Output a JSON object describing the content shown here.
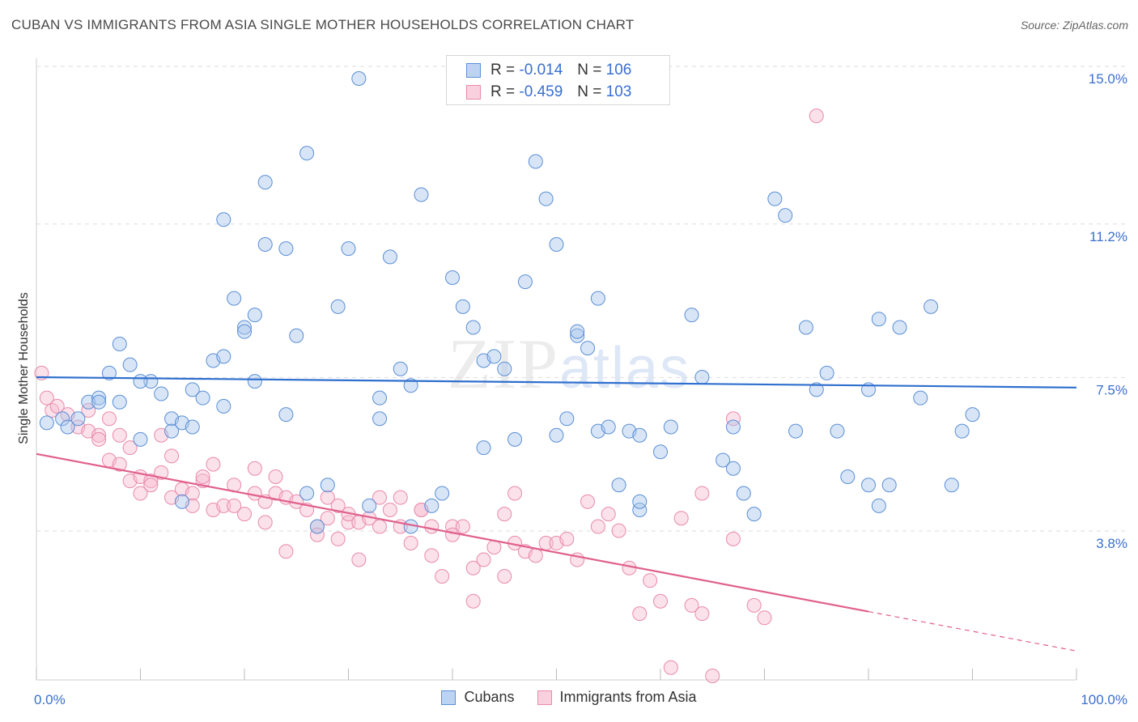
{
  "title": "CUBAN VS IMMIGRANTS FROM ASIA SINGLE MOTHER HOUSEHOLDS CORRELATION CHART",
  "source": "Source: ZipAtlas.com",
  "watermark": {
    "zip": "ZIP",
    "atlas": "atlas"
  },
  "legend": {
    "cubans": {
      "r_label": "R =",
      "r_value": "-0.014",
      "n_label": "N =",
      "n_value": "106"
    },
    "asia": {
      "r_label": "R =",
      "r_value": "-0.459",
      "n_label": "N =",
      "n_value": "103"
    }
  },
  "bottom_legend": {
    "cubans": "Cubans",
    "asia": "Immigrants from Asia"
  },
  "colors": {
    "cubans_fill": "#a9c6ec",
    "cubans_stroke": "#5b8fd6",
    "cubans_line": "#2f6fce",
    "asia_fill": "#f6bdd0",
    "asia_stroke": "#e98aab",
    "asia_line": "#e0608d",
    "tick_label": "#3a6fcf",
    "grid": "#dddddd"
  },
  "chart_data": {
    "type": "scatter",
    "title": "CUBAN VS IMMIGRANTS FROM ASIA SINGLE MOTHER HOUSEHOLDS CORRELATION CHART",
    "xlabel": "",
    "ylabel": "Single Mother Households",
    "xlim": [
      0,
      100
    ],
    "ylim": [
      0,
      15.6
    ],
    "x_tick_labels": [
      "0.0%",
      "100.0%"
    ],
    "y_ticks": [
      3.8,
      7.5,
      11.2,
      15.0
    ],
    "y_tick_labels": [
      "3.8%",
      "7.5%",
      "11.2%",
      "15.0%"
    ],
    "grid": true,
    "legend_position": "top-center",
    "series": [
      {
        "name": "Cubans",
        "trend": {
          "x": [
            0,
            100
          ],
          "y": [
            7.8,
            7.55
          ]
        },
        "points": [
          [
            1,
            6.7
          ],
          [
            2.5,
            6.8
          ],
          [
            3,
            6.6
          ],
          [
            4,
            6.8
          ],
          [
            5,
            7.2
          ],
          [
            6,
            7.3
          ],
          [
            6,
            7.2
          ],
          [
            7,
            7.9
          ],
          [
            8,
            8.6
          ],
          [
            8,
            7.2
          ],
          [
            9,
            8.1
          ],
          [
            10,
            6.3
          ],
          [
            11,
            7.7
          ],
          [
            12,
            7.4
          ],
          [
            13,
            6.8
          ],
          [
            10,
            7.7
          ],
          [
            13,
            6.5
          ],
          [
            14,
            4.8
          ],
          [
            14,
            6.7
          ],
          [
            15,
            6.6
          ],
          [
            15,
            7.5
          ],
          [
            16,
            7.3
          ],
          [
            17,
            8.2
          ],
          [
            18,
            8.3
          ],
          [
            18,
            11.6
          ],
          [
            18,
            7.1
          ],
          [
            19,
            9.7
          ],
          [
            20,
            9.0
          ],
          [
            20,
            8.9
          ],
          [
            21,
            9.3
          ],
          [
            21,
            7.7
          ],
          [
            22,
            12.5
          ],
          [
            22,
            11.0
          ],
          [
            24,
            10.9
          ],
          [
            24,
            6.9
          ],
          [
            25,
            8.8
          ],
          [
            26,
            13.2
          ],
          [
            26,
            5.0
          ],
          [
            27,
            4.2
          ],
          [
            28,
            5.2
          ],
          [
            29,
            9.5
          ],
          [
            30,
            10.9
          ],
          [
            31,
            15.0
          ],
          [
            32,
            4.7
          ],
          [
            33,
            7.3
          ],
          [
            33,
            6.8
          ],
          [
            34,
            10.7
          ],
          [
            35,
            8.0
          ],
          [
            36,
            7.6
          ],
          [
            36,
            4.2
          ],
          [
            37,
            12.2
          ],
          [
            38,
            4.7
          ],
          [
            39,
            5.0
          ],
          [
            40,
            10.2
          ],
          [
            41,
            9.5
          ],
          [
            42,
            9.0
          ],
          [
            43,
            8.2
          ],
          [
            43,
            6.1
          ],
          [
            44,
            8.3
          ],
          [
            45,
            8.0
          ],
          [
            46,
            6.3
          ],
          [
            47,
            10.1
          ],
          [
            48,
            13.0
          ],
          [
            49,
            12.1
          ],
          [
            50,
            11.0
          ],
          [
            50,
            6.4
          ],
          [
            51,
            6.8
          ],
          [
            52,
            8.8
          ],
          [
            52,
            8.9
          ],
          [
            53,
            8.5
          ],
          [
            54,
            9.7
          ],
          [
            54,
            6.5
          ],
          [
            55,
            6.6
          ],
          [
            56,
            5.2
          ],
          [
            57,
            6.5
          ],
          [
            58,
            4.6
          ],
          [
            58,
            4.8
          ],
          [
            58,
            6.4
          ],
          [
            60,
            6.0
          ],
          [
            61,
            6.6
          ],
          [
            63,
            9.3
          ],
          [
            64,
            7.8
          ],
          [
            66,
            5.8
          ],
          [
            67,
            6.6
          ],
          [
            67,
            5.6
          ],
          [
            68,
            5.0
          ],
          [
            69,
            4.5
          ],
          [
            71,
            12.1
          ],
          [
            72,
            11.7
          ],
          [
            73,
            6.5
          ],
          [
            74,
            9.0
          ],
          [
            75,
            7.5
          ],
          [
            76,
            7.9
          ],
          [
            77,
            6.5
          ],
          [
            78,
            5.4
          ],
          [
            80,
            7.5
          ],
          [
            80,
            5.2
          ],
          [
            81,
            9.2
          ],
          [
            81,
            4.7
          ],
          [
            82,
            5.2
          ],
          [
            83,
            9.0
          ],
          [
            85,
            7.3
          ],
          [
            86,
            9.5
          ],
          [
            88,
            5.2
          ],
          [
            89,
            6.5
          ],
          [
            90,
            6.9
          ]
        ]
      },
      {
        "name": "Immigrants from Asia",
        "trend": {
          "x": [
            0,
            80
          ],
          "y": [
            5.95,
            2.15
          ]
        },
        "trend_dashed": {
          "x": [
            80,
            100
          ],
          "y": [
            2.15,
            1.2
          ]
        },
        "points": [
          [
            0.5,
            7.9
          ],
          [
            1,
            7.3
          ],
          [
            1.5,
            7.0
          ],
          [
            2,
            7.1
          ],
          [
            3,
            6.9
          ],
          [
            4,
            6.6
          ],
          [
            5,
            6.5
          ],
          [
            5,
            7.0
          ],
          [
            6,
            6.4
          ],
          [
            6,
            6.3
          ],
          [
            7,
            6.8
          ],
          [
            7,
            5.8
          ],
          [
            8,
            5.7
          ],
          [
            8,
            6.4
          ],
          [
            9,
            5.3
          ],
          [
            9,
            6.1
          ],
          [
            10,
            5.4
          ],
          [
            10,
            5.0
          ],
          [
            11,
            5.3
          ],
          [
            11,
            5.2
          ],
          [
            12,
            5.5
          ],
          [
            12,
            6.4
          ],
          [
            13,
            4.9
          ],
          [
            13,
            5.9
          ],
          [
            14,
            5.1
          ],
          [
            15,
            5.0
          ],
          [
            15,
            4.7
          ],
          [
            16,
            5.3
          ],
          [
            16,
            5.4
          ],
          [
            17,
            5.7
          ],
          [
            17,
            4.6
          ],
          [
            18,
            4.7
          ],
          [
            19,
            4.7
          ],
          [
            19,
            5.2
          ],
          [
            20,
            4.5
          ],
          [
            21,
            5.0
          ],
          [
            21,
            5.6
          ],
          [
            22,
            4.8
          ],
          [
            22,
            4.3
          ],
          [
            23,
            5.4
          ],
          [
            23,
            5.0
          ],
          [
            24,
            4.9
          ],
          [
            24,
            3.6
          ],
          [
            25,
            4.8
          ],
          [
            26,
            4.6
          ],
          [
            27,
            4.2
          ],
          [
            27,
            4.0
          ],
          [
            28,
            4.9
          ],
          [
            28,
            4.4
          ],
          [
            29,
            4.7
          ],
          [
            29,
            3.9
          ],
          [
            30,
            4.3
          ],
          [
            30,
            4.5
          ],
          [
            31,
            4.3
          ],
          [
            31,
            3.4
          ],
          [
            32,
            4.4
          ],
          [
            33,
            4.2
          ],
          [
            33,
            4.9
          ],
          [
            34,
            4.6
          ],
          [
            35,
            4.9
          ],
          [
            35,
            4.2
          ],
          [
            36,
            3.8
          ],
          [
            37,
            4.6
          ],
          [
            37,
            4.6
          ],
          [
            38,
            3.5
          ],
          [
            38,
            4.2
          ],
          [
            39,
            3.0
          ],
          [
            40,
            4.2
          ],
          [
            40,
            4.0
          ],
          [
            41,
            4.2
          ],
          [
            42,
            3.2
          ],
          [
            42,
            2.4
          ],
          [
            43,
            3.4
          ],
          [
            44,
            3.7
          ],
          [
            45,
            4.5
          ],
          [
            45,
            3.0
          ],
          [
            46,
            5.0
          ],
          [
            46,
            3.8
          ],
          [
            47,
            3.6
          ],
          [
            48,
            3.5
          ],
          [
            49,
            3.8
          ],
          [
            50,
            3.8
          ],
          [
            51,
            3.9
          ],
          [
            52,
            3.4
          ],
          [
            53,
            4.8
          ],
          [
            54,
            4.2
          ],
          [
            55,
            4.5
          ],
          [
            56,
            4.1
          ],
          [
            57,
            3.2
          ],
          [
            58,
            2.1
          ],
          [
            59,
            2.9
          ],
          [
            60,
            2.4
          ],
          [
            61,
            0.8
          ],
          [
            62,
            4.4
          ],
          [
            63,
            2.3
          ],
          [
            64,
            5.0
          ],
          [
            64,
            2.1
          ],
          [
            65,
            0.6
          ],
          [
            67,
            6.8
          ],
          [
            67,
            3.9
          ],
          [
            69,
            2.3
          ],
          [
            70,
            2.0
          ],
          [
            75,
            14.1
          ]
        ]
      }
    ]
  }
}
